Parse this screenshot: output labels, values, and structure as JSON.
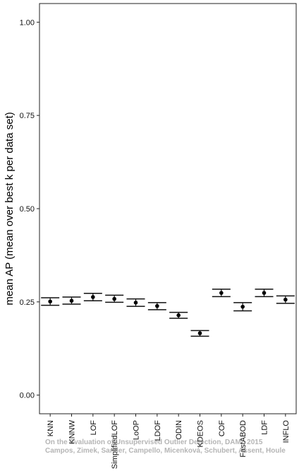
{
  "chart_data": {
    "type": "errorbar",
    "ylabel": "mean AP (mean over best k per data set)",
    "xlabel": "",
    "ylim": [
      -0.05,
      1.05
    ],
    "yticks": [
      0.0,
      0.25,
      0.5,
      0.75,
      1.0
    ],
    "ytick_labels": [
      "0.00",
      "0.25",
      "0.50",
      "0.75",
      "1.00"
    ],
    "grid": false,
    "categories": [
      "KNN",
      "KNNW",
      "LOF",
      "SimplifiedLOF",
      "LoOP",
      "LDOF",
      "ODIN",
      "KDEOS",
      "COF",
      "FastABOD",
      "LDF",
      "INFLO"
    ],
    "values": [
      0.251,
      0.253,
      0.263,
      0.258,
      0.248,
      0.239,
      0.214,
      0.166,
      0.274,
      0.237,
      0.274,
      0.256
    ],
    "lower": [
      0.241,
      0.244,
      0.253,
      0.249,
      0.238,
      0.229,
      0.206,
      0.158,
      0.264,
      0.226,
      0.264,
      0.246
    ],
    "upper": [
      0.261,
      0.263,
      0.273,
      0.268,
      0.258,
      0.248,
      0.222,
      0.173,
      0.284,
      0.248,
      0.284,
      0.266
    ],
    "watermark": [
      "On the Evaluation of Unsupervised Outlier Detection, DAMI, 2015",
      "Campos, Zimek, Sander, Campello, Micenková, Schubert, Assent, Houle"
    ]
  }
}
